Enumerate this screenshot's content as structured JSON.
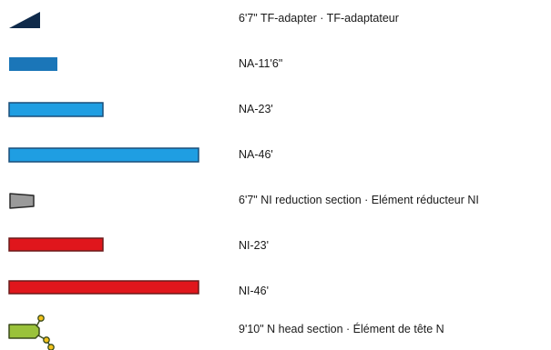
{
  "legend": {
    "items": [
      {
        "label": "6'7\" TF-adapter · TF-adaptateur",
        "icon": "tf-adapter-wedge-icon",
        "fill": "#0f2a4a",
        "stroke": "#0f2a4a"
      },
      {
        "label": "NA-11'6\"",
        "icon": "na-short-bar-icon",
        "fill": "#1b76b8",
        "stroke": "#1b76b8"
      },
      {
        "label": "NA-23'",
        "icon": "na-medium-bar-icon",
        "fill": "#1f9ee2",
        "stroke": "#1a4f7a"
      },
      {
        "label": "NA-46'",
        "icon": "na-long-bar-icon",
        "fill": "#1f9ee2",
        "stroke": "#1a4f7a"
      },
      {
        "label": "6'7\" NI reduction section · Elément réducteur NI",
        "icon": "ni-reduction-trapezoid-icon",
        "fill": "#9a9a9a",
        "stroke": "#2a2a2a"
      },
      {
        "label": "NI-23'",
        "icon": "ni-medium-bar-icon",
        "fill": "#e0161c",
        "stroke": "#6a1a1a"
      },
      {
        "label": "NI-46'",
        "icon": "ni-long-bar-icon",
        "fill": "#e0161c",
        "stroke": "#6a1a1a"
      },
      {
        "label": "9'10\" N head section · Élément de tête N",
        "icon": "n-head-section-icon",
        "fill": "#9ac23a",
        "stroke": "#3a4a1a",
        "accent": "#f2c21a"
      }
    ]
  }
}
